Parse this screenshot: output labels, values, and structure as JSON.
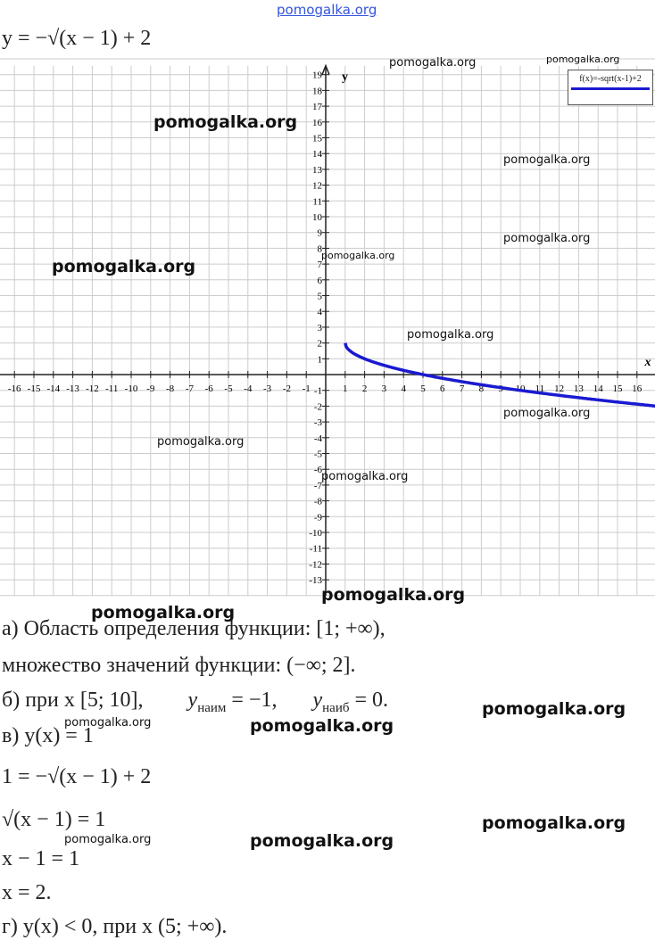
{
  "site": "pomogalka.org",
  "formula": "y = −√(x − 1) + 2",
  "chart_data": {
    "type": "line",
    "function": "f(x)=-sqrt(x-1)+2",
    "xlabel": "x",
    "ylabel": "y",
    "xlim": [
      -16,
      16
    ],
    "ylim": [
      -13,
      19
    ],
    "x_ticks": [
      -16,
      -15,
      -14,
      -13,
      -12,
      -11,
      -10,
      -9,
      -8,
      -7,
      -6,
      -5,
      -4,
      -3,
      -2,
      -1,
      1,
      2,
      3,
      4,
      5,
      6,
      7,
      8,
      9,
      10,
      11,
      12,
      13,
      14,
      15,
      16
    ],
    "y_ticks": [
      19,
      18,
      17,
      16,
      15,
      14,
      13,
      12,
      11,
      10,
      9,
      8,
      7,
      6,
      5,
      4,
      3,
      2,
      1,
      -1,
      -2,
      -3,
      -4,
      -5,
      -6,
      -7,
      -8,
      -9,
      -10,
      -11,
      -12,
      -13
    ],
    "grid": true,
    "legend": {
      "label": "f(x)=-sqrt(x-1)+2",
      "placement": "top-right"
    },
    "series_color": "#1a1ad0",
    "domain": [
      1,
      17
    ]
  },
  "watermarks": [
    "pomogalka.org"
  ],
  "solution": [
    "а) Область определения функции: [1;  +∞),",
    "множество значений функции: (−∞; 2].",
    "б) при x [5; 10],",
    "y",
    "наим",
    " = −1,",
    "y",
    "наиб",
    " = 0.",
    "в) y(x) = 1",
    "1 = −√(x − 1) + 2",
    "√(x − 1) = 1",
    "x − 1 = 1",
    "x = 2.",
    "г) y(x) < 0,        при x (5;  +∞)."
  ]
}
